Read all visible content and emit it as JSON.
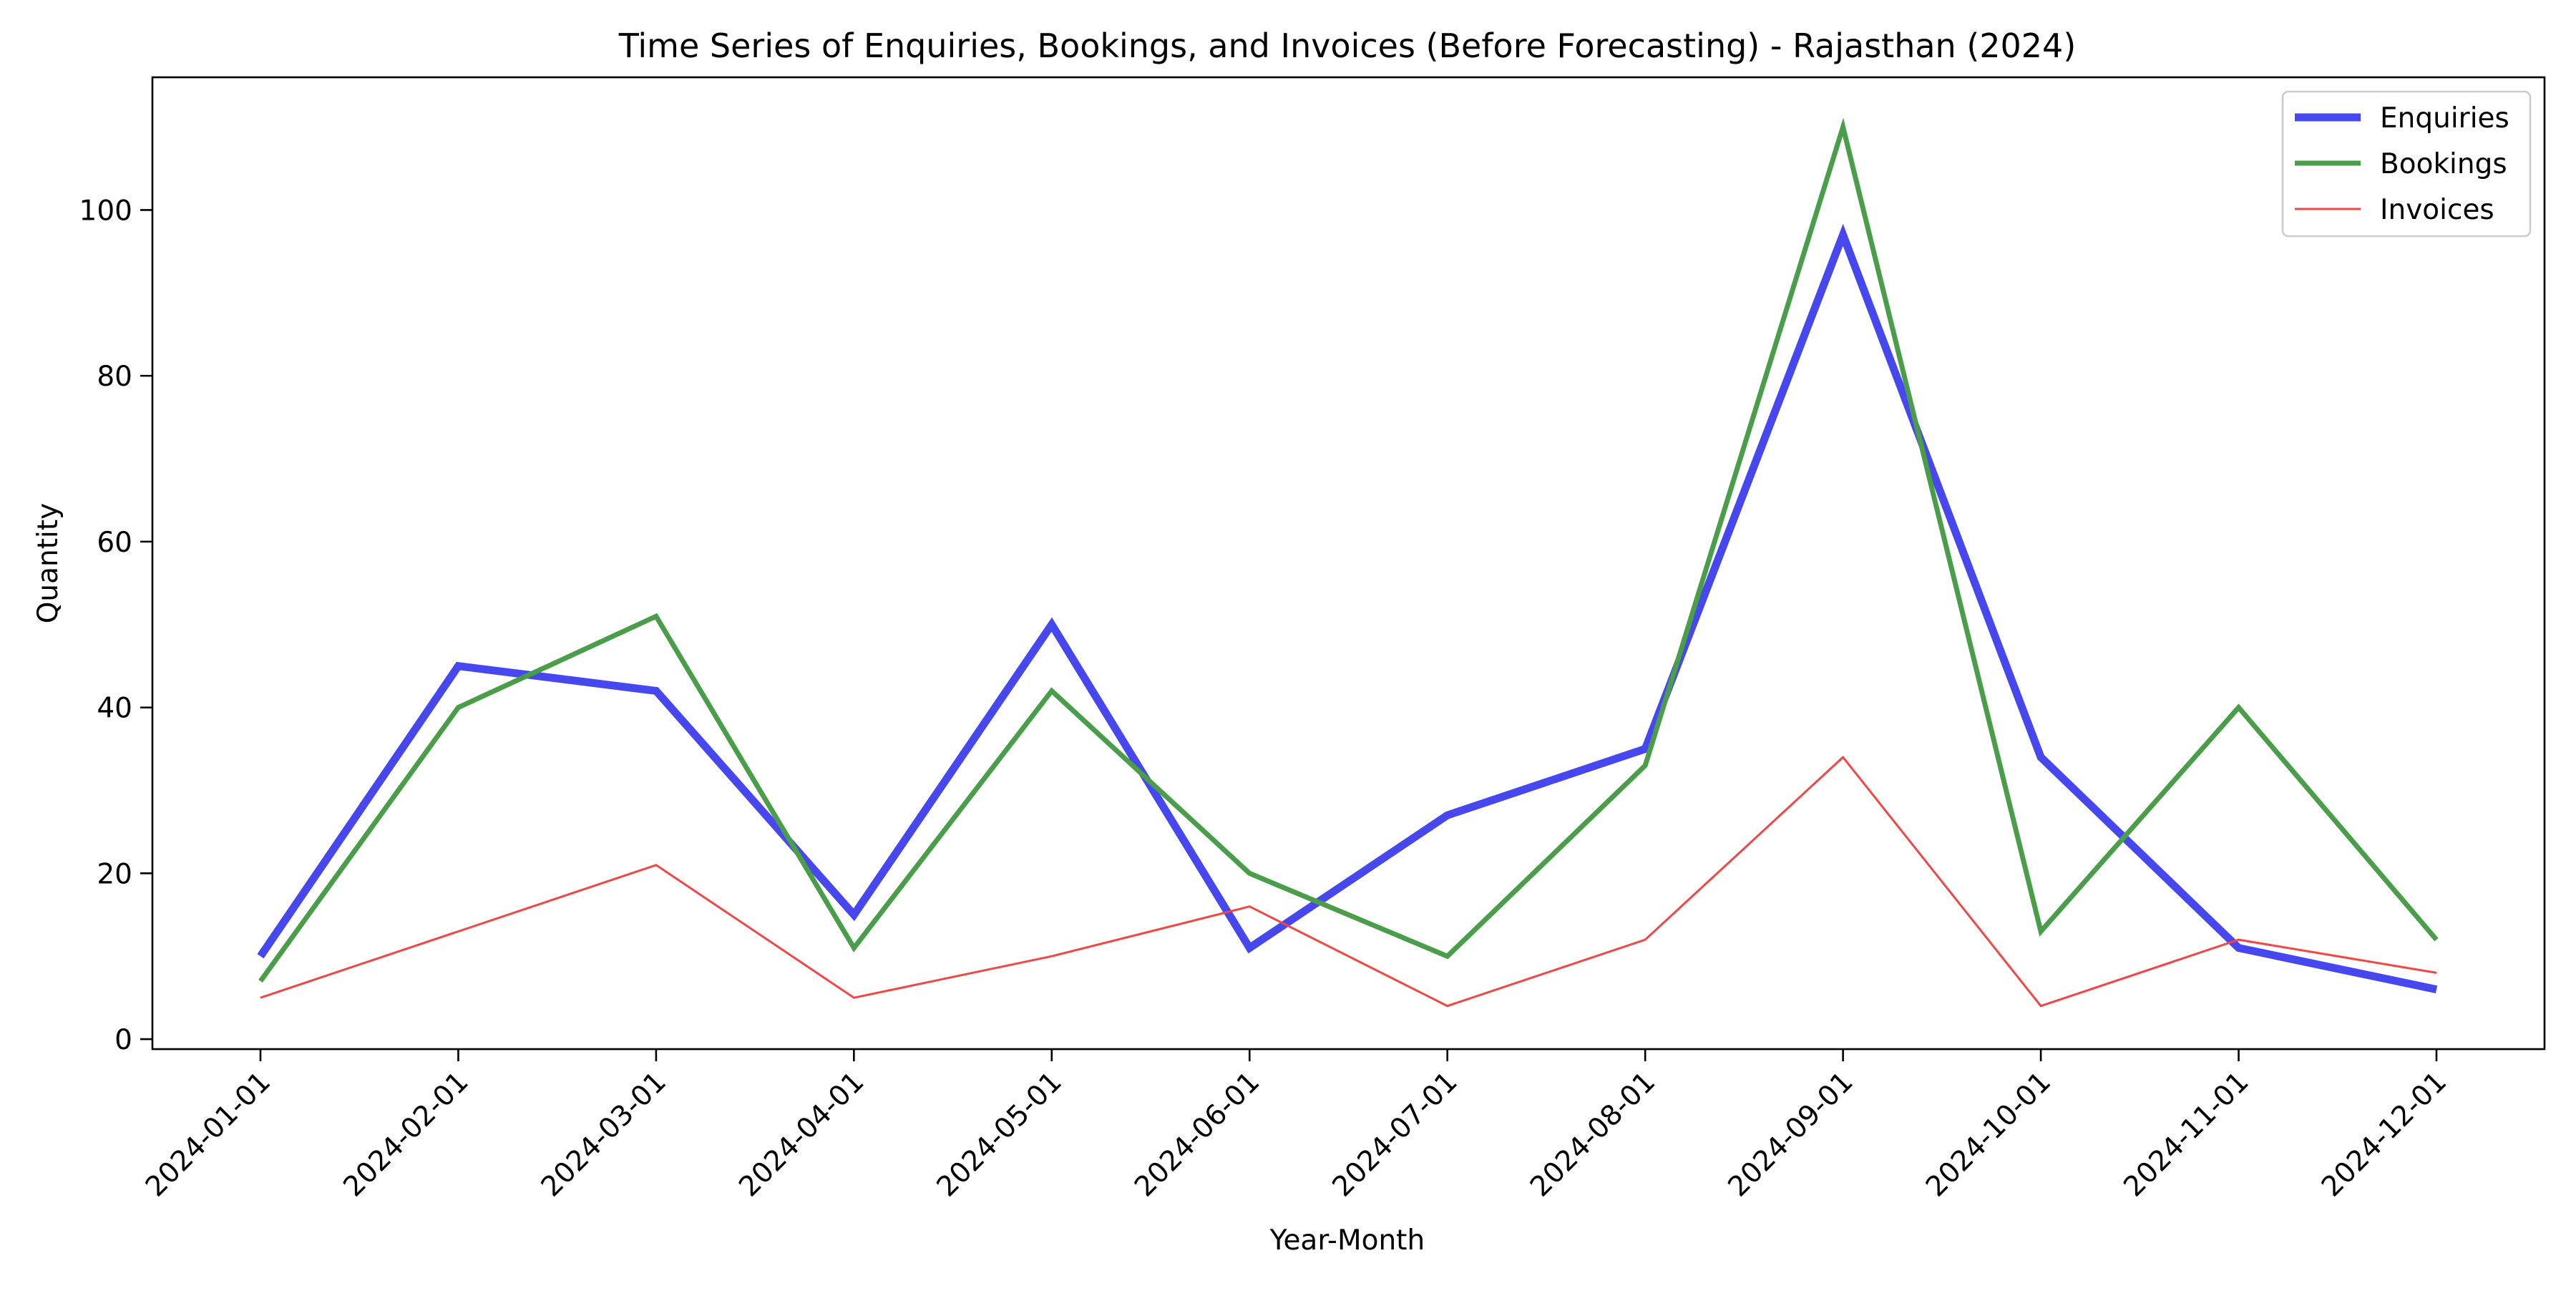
{
  "chart_data": {
    "type": "line",
    "title": "Time Series of Enquiries, Bookings, and Invoices (Before Forecasting) - Rajasthan (2024)",
    "xlabel": "Year-Month",
    "ylabel": "Quantity",
    "categories": [
      "2024-01-01",
      "2024-02-01",
      "2024-03-01",
      "2024-04-01",
      "2024-05-01",
      "2024-06-01",
      "2024-07-01",
      "2024-08-01",
      "2024-09-01",
      "2024-10-01",
      "2024-11-01",
      "2024-12-01"
    ],
    "ylim": [
      -1.2,
      116
    ],
    "yticks": [
      0,
      20,
      40,
      60,
      80,
      100
    ],
    "grid": false,
    "legend_position": "top-right",
    "series": [
      {
        "name": "Enquiries",
        "color": "#4747f0",
        "style": "thick",
        "values": [
          10,
          45,
          42,
          15,
          50,
          11,
          27,
          35,
          97,
          34,
          11,
          6
        ]
      },
      {
        "name": "Bookings",
        "color": "#4a9e4a",
        "style": "medium",
        "values": [
          7,
          40,
          51,
          11,
          42,
          20,
          10,
          33,
          110,
          13,
          40,
          12
        ]
      },
      {
        "name": "Invoices",
        "color": "#f04747",
        "style": "thin",
        "values": [
          5,
          13,
          21,
          5,
          10,
          16,
          4,
          12,
          34,
          4,
          12,
          8
        ]
      }
    ]
  }
}
